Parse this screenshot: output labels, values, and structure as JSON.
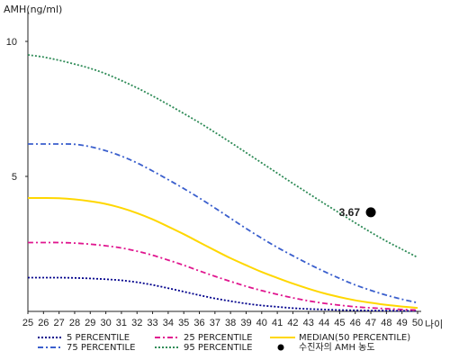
{
  "chart_data": {
    "type": "line",
    "ylabel": "AMH(ng/ml)",
    "xlabel": "나이",
    "xlim": [
      25,
      50
    ],
    "ylim": [
      0,
      11
    ],
    "x_ticks": [
      25,
      26,
      27,
      28,
      29,
      30,
      31,
      32,
      33,
      34,
      35,
      36,
      37,
      38,
      39,
      40,
      41,
      42,
      43,
      44,
      45,
      46,
      47,
      48,
      49,
      50
    ],
    "y_ticks": [
      5,
      10
    ],
    "grid": false,
    "legend_position": "bottom",
    "x": [
      25,
      26,
      27,
      28,
      29,
      30,
      31,
      32,
      33,
      34,
      35,
      36,
      37,
      38,
      39,
      40,
      41,
      42,
      43,
      44,
      45,
      46,
      47,
      48,
      49,
      50
    ],
    "series": [
      {
        "name": "5 PERCENTILE",
        "color": "#00008b",
        "style": "dotted",
        "values": [
          1.25,
          1.25,
          1.25,
          1.24,
          1.22,
          1.19,
          1.15,
          1.08,
          0.98,
          0.86,
          0.73,
          0.6,
          0.48,
          0.38,
          0.29,
          0.22,
          0.17,
          0.12,
          0.09,
          0.07,
          0.05,
          0.04,
          0.03,
          0.03,
          0.02,
          0.02
        ]
      },
      {
        "name": "25 PERCENTILE",
        "color": "#e0168f",
        "style": "dashdot",
        "values": [
          2.55,
          2.55,
          2.55,
          2.53,
          2.49,
          2.43,
          2.35,
          2.23,
          2.08,
          1.9,
          1.71,
          1.5,
          1.3,
          1.11,
          0.93,
          0.77,
          0.63,
          0.5,
          0.39,
          0.3,
          0.23,
          0.17,
          0.13,
          0.1,
          0.07,
          0.05
        ]
      },
      {
        "name": "MEDIAN(50 PERCENTILE)",
        "color": "#ffd700",
        "style": "solid",
        "values": [
          4.2,
          4.2,
          4.19,
          4.15,
          4.08,
          3.98,
          3.83,
          3.64,
          3.41,
          3.14,
          2.86,
          2.56,
          2.26,
          1.97,
          1.71,
          1.46,
          1.24,
          1.03,
          0.84,
          0.67,
          0.53,
          0.41,
          0.32,
          0.24,
          0.18,
          0.13
        ]
      },
      {
        "name": "75 PERCENTILE",
        "color": "#3a5fcd",
        "style": "dashdot",
        "values": [
          6.2,
          6.2,
          6.2,
          6.19,
          6.1,
          5.95,
          5.75,
          5.5,
          5.2,
          4.88,
          4.55,
          4.2,
          3.83,
          3.45,
          3.07,
          2.71,
          2.37,
          2.06,
          1.76,
          1.48,
          1.22,
          0.98,
          0.78,
          0.6,
          0.45,
          0.32
        ]
      },
      {
        "name": "95 PERCENTILE",
        "color": "#2e8b57",
        "style": "dotted",
        "values": [
          9.5,
          9.42,
          9.3,
          9.16,
          9.0,
          8.8,
          8.55,
          8.28,
          7.98,
          7.66,
          7.33,
          6.99,
          6.63,
          6.26,
          5.88,
          5.5,
          5.12,
          4.74,
          4.37,
          4.0,
          3.64,
          3.28,
          2.93,
          2.6,
          2.3,
          2.0
        ]
      }
    ],
    "marker": {
      "name": "수진자의 AMH 농도",
      "x": 47,
      "y": 3.67,
      "label": "3.67",
      "color": "#000000"
    }
  }
}
